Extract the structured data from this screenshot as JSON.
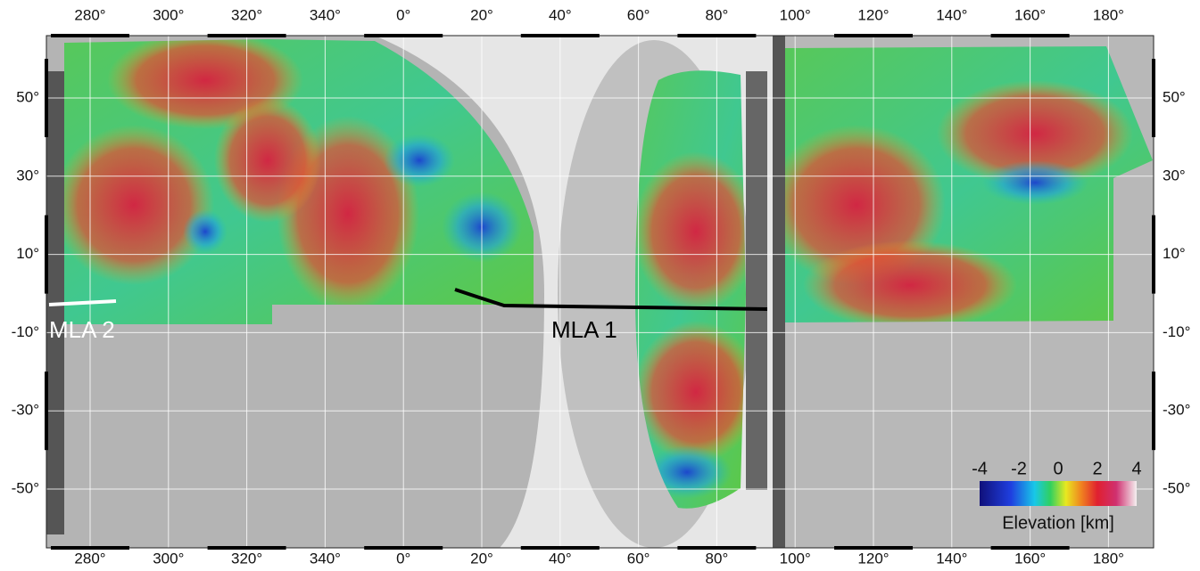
{
  "map": {
    "longitude_labels": [
      "280°",
      "300°",
      "320°",
      "340°",
      "0°",
      "20°",
      "40°",
      "60°",
      "80°",
      "100°",
      "120°",
      "140°",
      "160°",
      "180°"
    ],
    "latitude_labels": [
      "50°",
      "30°",
      "10°",
      "-10°",
      "-30°",
      "-50°"
    ],
    "tracks": [
      "MLA 2",
      "MLA 1"
    ],
    "colorbar": {
      "ticks": [
        -4,
        -2,
        0,
        2,
        4
      ],
      "label": "Elevation [km]"
    }
  }
}
